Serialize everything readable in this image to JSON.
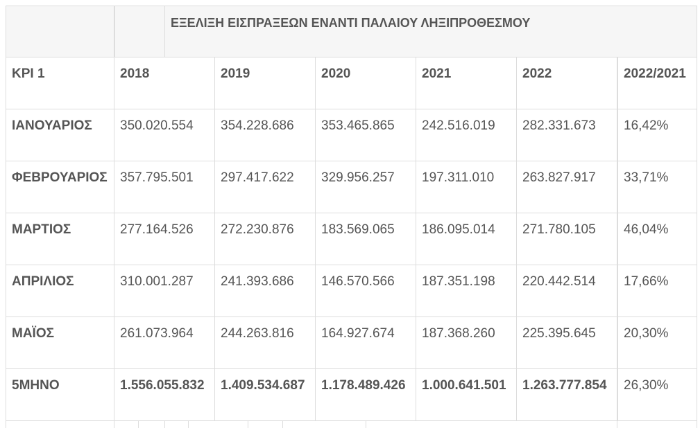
{
  "table": {
    "title": "ΕΞΕΛΙΞΗ ΕΙΣΠΡΑΞΕΩΝ ΕΝΑΝΤΙ ΠΑΛΑΙΟΥ ΛΗΞΙΠΡΟΘΕΣΜΟΥ",
    "header": [
      "KPI 1",
      "2018",
      "2019",
      "2020",
      "2021",
      "2022",
      "2022/2021"
    ],
    "rows": [
      [
        "ΙΑΝΟΥΑΡΙΟΣ",
        "350.020.554",
        "354.228.686",
        "353.465.865",
        "242.516.019",
        "282.331.673",
        "16,42%"
      ],
      [
        "ΦΕΒΡΟΥΑΡΙΟΣ",
        "357.795.501",
        "297.417.622",
        "329.956.257",
        "197.311.010",
        "263.827.917",
        "33,71%"
      ],
      [
        "ΜΑΡΤΙΟΣ",
        "277.164.526",
        "272.230.876",
        "183.569.065",
        "186.095.014",
        "271.780.105",
        "46,04%"
      ],
      [
        "ΑΠΡΙΛΙΟΣ",
        "310.001.287",
        "241.393.686",
        "146.570.566",
        "187.351.198",
        "220.442.514",
        "17,66%"
      ],
      [
        "ΜΑΪΟΣ",
        "261.073.964",
        "244.263.816",
        "164.927.674",
        "187.368.260",
        "225.395.645",
        "20,30%"
      ],
      [
        "5ΜΗΝΟ",
        "1.556.055.832",
        "1.409.534.687",
        "1.178.489.426",
        "1.000.641.501",
        "1.263.777.854",
        "26,30%"
      ]
    ]
  }
}
